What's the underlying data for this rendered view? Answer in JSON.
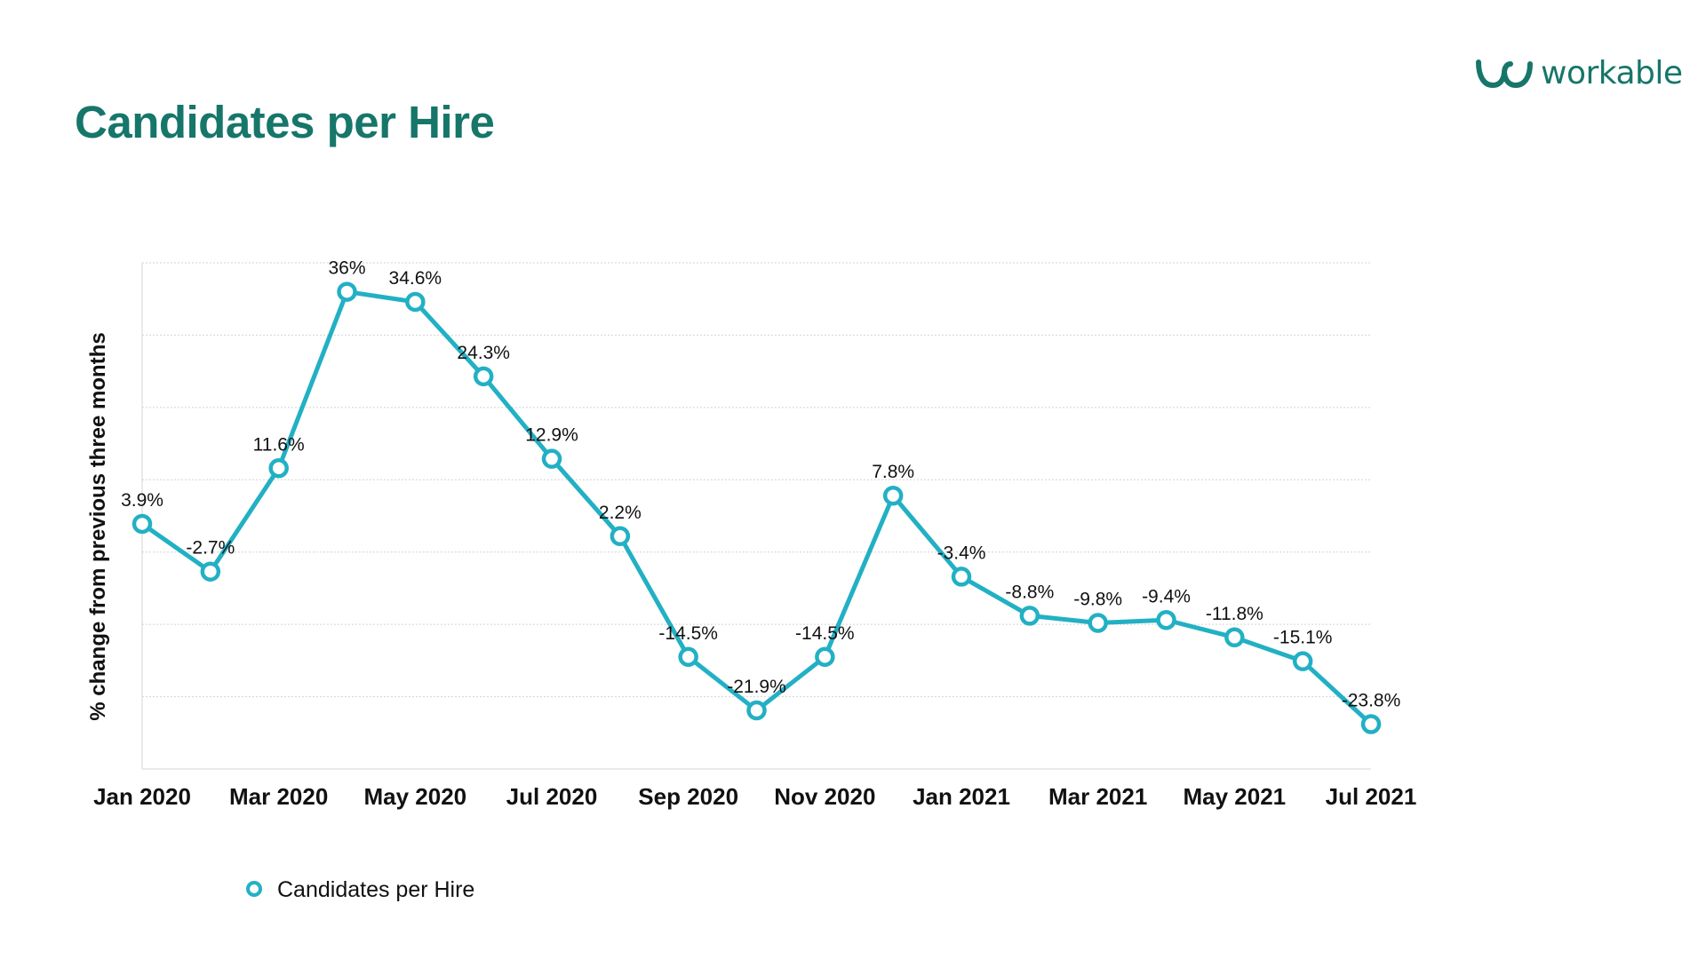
{
  "header": {
    "title": "Candidates per Hire",
    "logo_text": "workable"
  },
  "colors": {
    "title": "#16766a",
    "series": "#22b0c4",
    "grid": "#d4d4d4"
  },
  "chart_data": {
    "type": "line",
    "title": "Candidates per Hire",
    "ylabel": "% change from previous three months",
    "xlabel": "",
    "x": [
      "Jan 2020",
      "Feb 2020",
      "Mar 2020",
      "Apr 2020",
      "May 2020",
      "Jun 2020",
      "Jul 2020",
      "Aug 2020",
      "Sep 2020",
      "Oct 2020",
      "Nov 2020",
      "Dec 2020",
      "Jan 2021",
      "Feb 2021",
      "Mar 2021",
      "Apr 2021",
      "May 2021",
      "Jun 2021",
      "Jul 2021"
    ],
    "x_tick_labels": [
      "Jan 2020",
      "",
      "Mar 2020",
      "",
      "May 2020",
      "",
      "Jul 2020",
      "",
      "Sep 2020",
      "",
      "Nov 2020",
      "",
      "Jan 2021",
      "",
      "Mar 2021",
      "",
      "May 2021",
      "",
      "Jul 2021"
    ],
    "series": [
      {
        "name": "Candidates per Hire",
        "values": [
          3.9,
          -2.7,
          11.6,
          36,
          34.6,
          24.3,
          12.9,
          2.2,
          -14.5,
          -21.9,
          -14.5,
          7.8,
          -3.4,
          -8.8,
          -9.8,
          -9.4,
          -11.8,
          -15.1,
          -23.8
        ],
        "labels": [
          "3.9%",
          "-2.7%",
          "11.6%",
          "36%",
          "34.6%",
          "24.3%",
          "12.9%",
          "2.2%",
          "-14.5%",
          "-21.9%",
          "-14.5%",
          "7.8%",
          "-3.4%",
          "-8.8%",
          "-9.8%",
          "-9.4%",
          "-11.8%",
          "-15.1%",
          "-23.8%"
        ]
      }
    ],
    "ylim": [
      -30,
      40
    ],
    "grid": true,
    "legend_position": "bottom-left"
  }
}
